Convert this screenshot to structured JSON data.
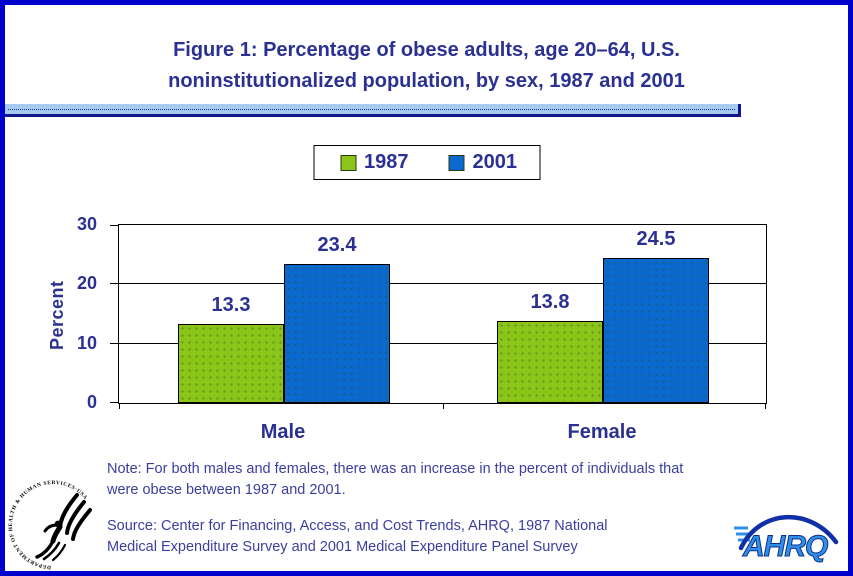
{
  "frame": {
    "border_color": "#0101cd",
    "divider_color": "#a6caf0",
    "divider_shadow": "#14148c"
  },
  "title": {
    "line1": "Figure 1: Percentage of obese adults, age 20–64, U.S.",
    "line2": "noninstitutionalized population, by sex, 1987 and 2001",
    "color": "#2b3193"
  },
  "legend": {
    "items": [
      {
        "label": "1987",
        "color": "#8bc519"
      },
      {
        "label": "2001",
        "color": "#0a69ce"
      }
    ]
  },
  "chart_data": {
    "type": "bar",
    "title": "Figure 1: Percentage of obese adults, age 20–64, U.S. noninstitutionalized population, by sex, 1987 and 2001",
    "categories": [
      "Male",
      "Female"
    ],
    "series": [
      {
        "name": "1987",
        "color": "#8bc519",
        "values": [
          13.3,
          13.8
        ]
      },
      {
        "name": "2001",
        "color": "#0a69ce",
        "values": [
          23.4,
          24.5
        ]
      }
    ],
    "xlabel": "",
    "ylabel": "Percent",
    "ylim": [
      0,
      30
    ],
    "yticks": [
      0,
      10,
      20,
      30
    ],
    "grid": true,
    "legend_position": "top-center",
    "data_labels": true
  },
  "notes": {
    "note_line1": "Note: For both males and females, there was an increase in the percent of individuals that",
    "note_line2": "were obese between 1987 and 2001.",
    "source_line1": "Source: Center for Financing, Access, and Cost Trends, AHRQ, 1987 National",
    "source_line2": "Medical Expenditure Survey and 2001 Medical Expenditure Panel Survey"
  },
  "logos": {
    "hhs_circle_text": "DEPARTMENT OF HEALTH & HUMAN SERVICES·USA",
    "ahrq_text": "AHRQ"
  }
}
